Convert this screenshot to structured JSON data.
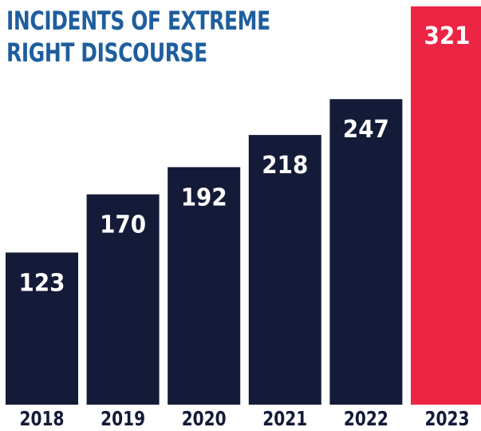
{
  "colors": {
    "title": "#1f5e9e",
    "bar": "#141b38",
    "highlight_bar": "#ec2545",
    "label_text": "#ffffff",
    "axis_text": "#141b38"
  },
  "chart_data": {
    "type": "bar",
    "title_lines": [
      "INCIDENTS OF EXTREME",
      "RIGHT DISCOURSE"
    ],
    "categories": [
      "2018",
      "2019",
      "2020",
      "2021",
      "2022",
      "2023"
    ],
    "values": [
      123,
      170,
      192,
      218,
      247,
      321
    ],
    "highlight_index": 5,
    "ylim": [
      0,
      330
    ],
    "grid": false,
    "legend": "none",
    "data_labels": true
  }
}
